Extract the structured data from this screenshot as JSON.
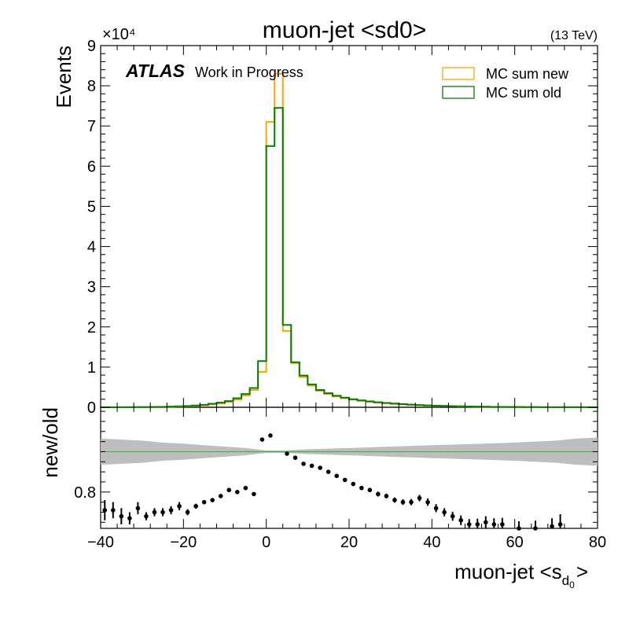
{
  "chart_data": [
    {
      "type": "line",
      "panel": "main",
      "title": "muon-jet <sd0>",
      "energy_label": "(13 TeV)",
      "atlas_label": "ATLAS",
      "atlas_sublabel": "Work in Progress",
      "ylabel": "Events",
      "y_exponent_label": "×10⁴",
      "xlim": [
        -40,
        80
      ],
      "ylim": [
        0,
        90000
      ],
      "y_ticks": [
        0,
        10000,
        20000,
        30000,
        40000,
        50000,
        60000,
        70000,
        80000,
        90000
      ],
      "y_tick_labels": [
        "0",
        "1",
        "2",
        "3",
        "4",
        "5",
        "6",
        "7",
        "8",
        "9"
      ],
      "legend_position": "top-right",
      "bin_edges": [
        -40,
        -38,
        -36,
        -34,
        -32,
        -30,
        -28,
        -26,
        -24,
        -22,
        -20,
        -18,
        -16,
        -14,
        -12,
        -10,
        -8,
        -6,
        -4,
        -2,
        0,
        2,
        4,
        6,
        8,
        10,
        12,
        14,
        16,
        18,
        20,
        22,
        24,
        26,
        28,
        30,
        32,
        34,
        36,
        38,
        40,
        42,
        44,
        46,
        48,
        50,
        52,
        54,
        56,
        58,
        60,
        62,
        64,
        66,
        68,
        70,
        72,
        74,
        76,
        78,
        80
      ],
      "series": [
        {
          "name": "MC sum new",
          "color": "#ffa500",
          "values": [
            5,
            8,
            10,
            15,
            25,
            40,
            60,
            80,
            120,
            180,
            250,
            350,
            480,
            700,
            950,
            1300,
            1900,
            2900,
            4300,
            8800,
            71000,
            83000,
            19000,
            11000,
            7500,
            5400,
            4100,
            3300,
            2700,
            2250,
            1900,
            1620,
            1380,
            1170,
            1000,
            860,
            730,
            620,
            520,
            440,
            370,
            310,
            260,
            220,
            180,
            150,
            125,
            100,
            85,
            70,
            58,
            48,
            40,
            33,
            27,
            22,
            18,
            15,
            12,
            10
          ]
        },
        {
          "name": "MC sum old",
          "color": "#008000",
          "values": [
            8,
            12,
            15,
            25,
            40,
            60,
            85,
            110,
            170,
            240,
            330,
            450,
            620,
            880,
            1150,
            1550,
            2250,
            3300,
            4800,
            11500,
            65000,
            74500,
            20500,
            11200,
            7900,
            5700,
            4300,
            3500,
            2850,
            2400,
            2000,
            1720,
            1470,
            1250,
            1070,
            920,
            780,
            660,
            560,
            470,
            400,
            335,
            280,
            235,
            195,
            160,
            135,
            110,
            92,
            76,
            63,
            52,
            43,
            36,
            29,
            24,
            20,
            16,
            13,
            11
          ]
        }
      ]
    },
    {
      "type": "scatter",
      "panel": "ratio",
      "ylabel": "new/old",
      "xlabel": "muon-jet <s",
      "xlabel_sub": "d",
      "xlabel_subsub": "0",
      "xlabel_close": ">",
      "xlim": [
        -40,
        80
      ],
      "ylim": [
        0.62,
        1.22
      ],
      "y_tick_labels": [
        "0.8"
      ],
      "x_ticks": [
        -40,
        -20,
        0,
        20,
        40,
        60,
        80
      ],
      "x_tick_labels": [
        "−40",
        "−20",
        "0",
        "20",
        "40",
        "60",
        "80"
      ],
      "reference_line": 1.0,
      "band_color": "#bebebe",
      "line_color": "#4caf50",
      "uncertainty_band": {
        "x": [
          -40,
          -35,
          -30,
          -25,
          -20,
          -15,
          -10,
          -5,
          0,
          5,
          10,
          20,
          30,
          40,
          50,
          60,
          70,
          75,
          80
        ],
        "halfwidth": [
          0.065,
          0.06,
          0.055,
          0.045,
          0.04,
          0.032,
          0.025,
          0.018,
          0.006,
          0.006,
          0.012,
          0.018,
          0.025,
          0.032,
          0.038,
          0.045,
          0.055,
          0.065,
          0.07
        ]
      },
      "points": {
        "x": [
          -39,
          -37,
          -35,
          -33,
          -31,
          -29,
          -27,
          -25,
          -23,
          -21,
          -19,
          -17,
          -15,
          -13,
          -11,
          -9,
          -7,
          -5,
          -3,
          -1,
          1,
          5,
          7,
          9,
          11,
          13,
          15,
          17,
          19,
          21,
          23,
          25,
          27,
          29,
          31,
          33,
          35,
          37,
          39,
          41,
          43,
          45,
          47,
          49,
          51,
          53,
          55,
          57,
          61,
          65,
          69,
          71
        ],
        "y": [
          0.71,
          0.71,
          0.68,
          0.67,
          0.72,
          0.68,
          0.7,
          0.7,
          0.71,
          0.73,
          0.7,
          0.73,
          0.75,
          0.76,
          0.78,
          0.81,
          0.8,
          0.82,
          0.79,
          1.06,
          1.08,
          0.99,
          0.97,
          0.94,
          0.93,
          0.92,
          0.9,
          0.88,
          0.86,
          0.84,
          0.82,
          0.81,
          0.79,
          0.78,
          0.76,
          0.75,
          0.75,
          0.77,
          0.75,
          0.72,
          0.7,
          0.68,
          0.66,
          0.64,
          0.64,
          0.65,
          0.64,
          0.64,
          0.62,
          0.62,
          0.63,
          0.64
        ],
        "err": [
          0.05,
          0.04,
          0.04,
          0.03,
          0.03,
          0.02,
          0.02,
          0.02,
          0.02,
          0.02,
          0.015,
          0.012,
          0.01,
          0.01,
          0.01,
          0.008,
          0.008,
          0.006,
          0.005,
          0.004,
          0.004,
          0.004,
          0.005,
          0.006,
          0.006,
          0.007,
          0.008,
          0.008,
          0.009,
          0.01,
          0.01,
          0.01,
          0.012,
          0.012,
          0.013,
          0.014,
          0.015,
          0.016,
          0.018,
          0.02,
          0.02,
          0.022,
          0.024,
          0.026,
          0.028,
          0.03,
          0.03,
          0.032,
          0.035,
          0.038,
          0.04,
          0.05
        ]
      }
    }
  ]
}
